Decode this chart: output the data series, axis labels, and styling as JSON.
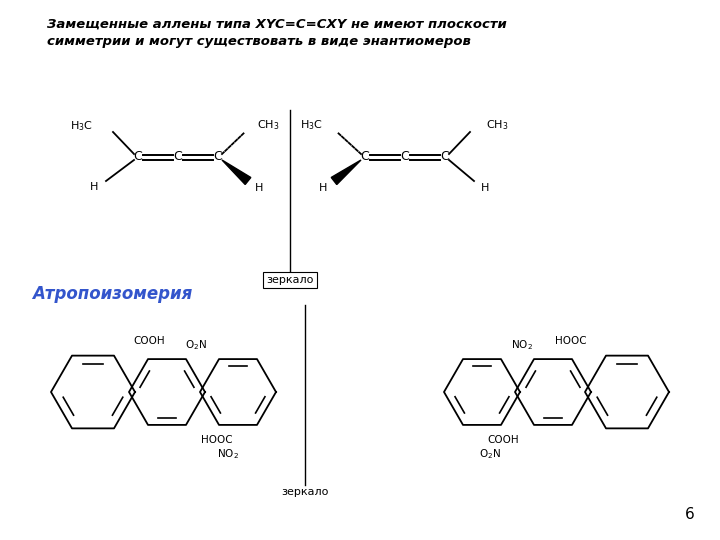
{
  "title_text": "Замещенные аллены типа XYC=C=CXY не имеют плоскости\nсимметрии и могут существовать в виде энантиомеров",
  "title_fontsize": 9.5,
  "title_fontstyle": "italic",
  "title_fontweight": "bold",
  "mirror_label_top": "зеркало",
  "mirror_label_bot": "зеркало",
  "atropisomer_label": "Атропоизомерия",
  "atropisomer_color": "#3355CC",
  "page_number": "6",
  "bg_color": "#ffffff",
  "line_color": "#000000"
}
